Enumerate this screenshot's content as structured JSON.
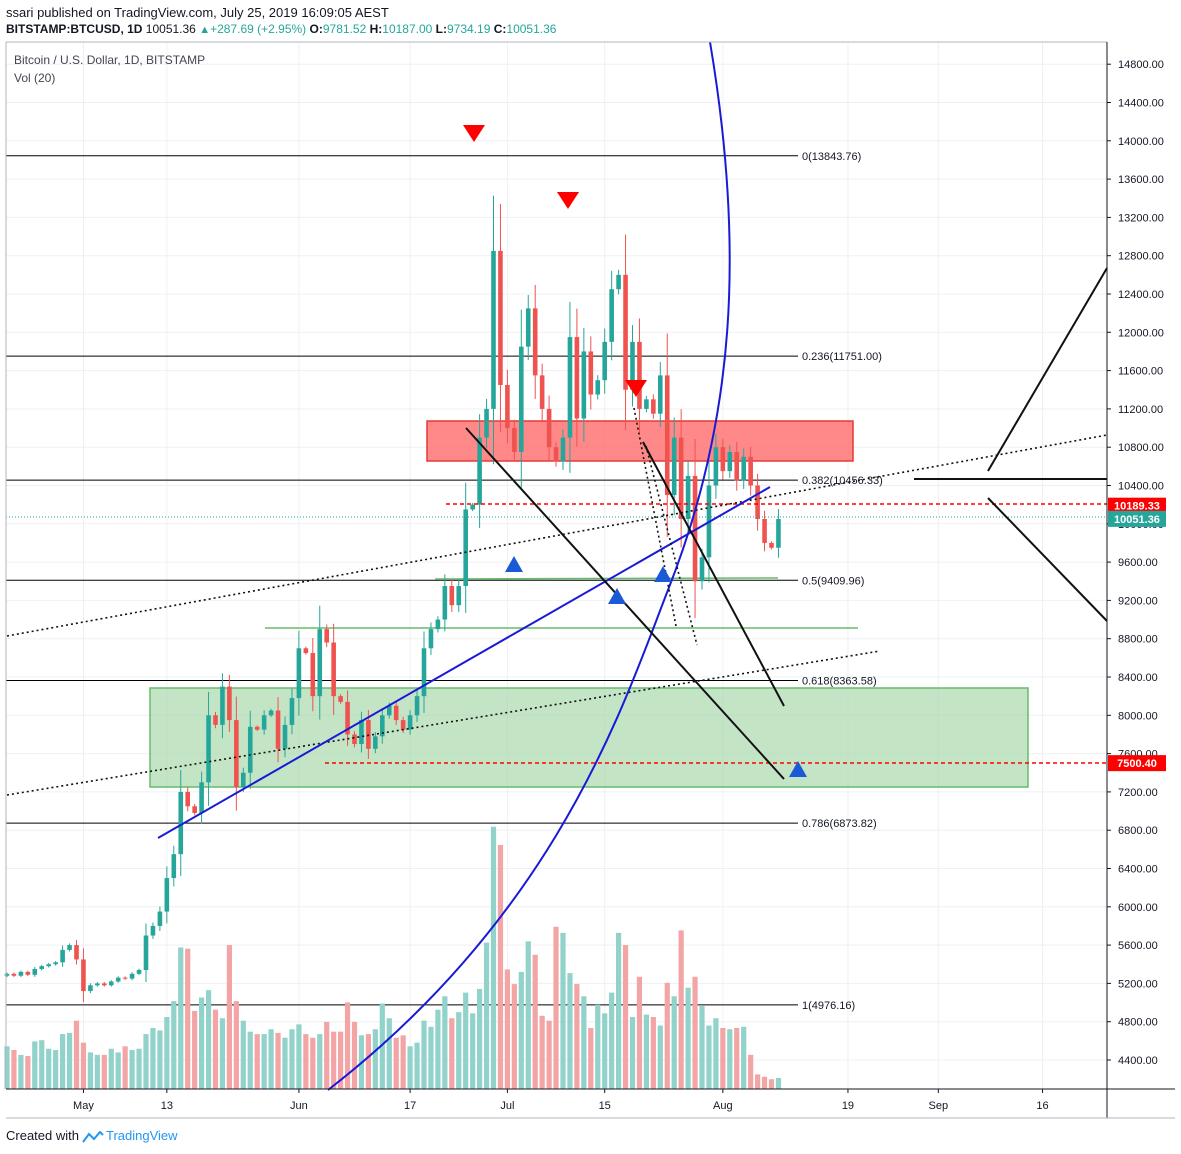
{
  "header": {
    "author": "ssari",
    "published_text": "published on TradingView.com, July 25, 2019 16:09:05 AEST",
    "symbol": "BITSTAMP:BTCUSD",
    "interval": "1D",
    "last": "10051.36",
    "change": "+287.69 (+2.95%)",
    "open_label": "O:",
    "open": "9781.52",
    "high_label": "H:",
    "high": "10187.00",
    "low_label": "L:",
    "low": "9734.19",
    "close_label": "C:",
    "close": "10051.36"
  },
  "legend": {
    "title": "Bitcoin / U.S. Dollar, 1D, BITSTAMP",
    "volume": "Vol (20)"
  },
  "footer": {
    "created_with": "Created with",
    "brand": "TradingView"
  },
  "colors": {
    "bull": "#26a69a",
    "bear": "#ef5350",
    "bull_vol": "#91d2ca",
    "bear_vol": "#f3a5a6",
    "resistance_zone": "#ff6b6b",
    "support_zone": "#a5d6a7",
    "trend_blue": "#1a1ad6",
    "pivot_down": "#ff0000",
    "pivot_up": "#1a5ad6"
  },
  "chart_data": {
    "type": "candlestick",
    "title": "Bitcoin / U.S. Dollar, 1D, BITSTAMP",
    "ylim": [
      4050,
      15100
    ],
    "start_date": "2019-04-20",
    "x_ticks": [
      {
        "label": "May",
        "day": 11
      },
      {
        "label": "13",
        "day": 23
      },
      {
        "label": "Jun",
        "day": 42
      },
      {
        "label": "17",
        "day": 58
      },
      {
        "label": "Jul",
        "day": 72
      },
      {
        "label": "15",
        "day": 86
      },
      {
        "label": "Aug",
        "day": 103
      },
      {
        "label": "19",
        "day": 121
      },
      {
        "label": "Sep",
        "day": 134
      },
      {
        "label": "16",
        "day": 149
      }
    ],
    "y_ticks": [
      "4400.00",
      "4800.00",
      "5200.00",
      "5600.00",
      "6000.00",
      "6400.00",
      "6800.00",
      "7200.00",
      "7600.00",
      "8000.00",
      "8400.00",
      "8800.00",
      "9200.00",
      "9600.00",
      "10000.00",
      "10400.00",
      "10800.00",
      "11200.00",
      "11600.00",
      "12000.00",
      "12400.00",
      "12800.00",
      "13200.00",
      "13600.00",
      "14000.00",
      "14400.00",
      "14800.00"
    ],
    "last_price_label": "10051.36",
    "price_tags": [
      "10189.33",
      "7500.40"
    ],
    "fibonacci": [
      {
        "label": "0(13843.76)",
        "price": 13843.76
      },
      {
        "label": "0.236(11751.00)",
        "price": 11751.0
      },
      {
        "label": "0.382(10456.33)",
        "price": 10456.33
      },
      {
        "label": "0.5(9409.96)",
        "price": 9409.96
      },
      {
        "label": "0.618(8363.58)",
        "price": 8363.58
      },
      {
        "label": "0.786(6873.82)",
        "price": 6873.82
      },
      {
        "label": "1(4976.16)",
        "price": 4976.16
      }
    ],
    "closes": [
      5300,
      5280,
      5320,
      5290,
      5350,
      5380,
      5400,
      5420,
      5550,
      5600,
      5450,
      5120,
      5180,
      5200,
      5180,
      5220,
      5260,
      5250,
      5300,
      5340,
      5700,
      5800,
      5950,
      6300,
      6550,
      7200,
      7050,
      6980,
      7300,
      8000,
      7900,
      8300,
      7950,
      7250,
      7400,
      7880,
      7850,
      8000,
      8050,
      7650,
      7900,
      8180,
      8700,
      8650,
      8200,
      8900,
      8760,
      8200,
      8140,
      7800,
      7700,
      7950,
      7650,
      7780,
      8000,
      8100,
      7950,
      7850,
      8000,
      8200,
      8700,
      8900,
      9000,
      9350,
      9150,
      9350,
      10150,
      10200,
      10900,
      11200,
      12850,
      11450,
      11000,
      10750,
      11850,
      12250,
      11550,
      11200,
      10800,
      10650,
      10900,
      11950,
      11100,
      11800,
      11350,
      11500,
      11900,
      12450,
      12600,
      11400,
      11900,
      11200,
      11300,
      11150,
      11550,
      10300,
      10900,
      10050,
      10500,
      9400,
      9650,
      10400,
      10800,
      10550,
      10750,
      10450,
      10700,
      10400,
      10050,
      9800,
      9750,
      10050
    ],
    "volumes": [
      350,
      320,
      280,
      270,
      390,
      400,
      330,
      320,
      450,
      460,
      560,
      380,
      300,
      280,
      280,
      330,
      300,
      350,
      320,
      330,
      450,
      500,
      480,
      590,
      720,
      1160,
      1150,
      640,
      750,
      810,
      650,
      580,
      1180,
      720,
      560,
      470,
      450,
      450,
      490,
      460,
      420,
      490,
      530,
      450,
      420,
      450,
      550,
      470,
      470,
      710,
      550,
      440,
      450,
      490,
      700,
      580,
      420,
      440,
      350,
      380,
      560,
      510,
      650,
      760,
      580,
      630,
      790,
      620,
      820,
      1200,
      2150,
      2000,
      980,
      860,
      960,
      1210,
      1100,
      600,
      560,
      1330,
      1280,
      950,
      860,
      760,
      500,
      690,
      620,
      790,
      1280,
      1180,
      590,
      920,
      610,
      590,
      520,
      870,
      760,
      1300,
      830,
      920,
      680,
      520,
      580,
      500,
      490,
      500,
      510,
      280,
      120,
      100,
      80,
      90
    ],
    "series": [
      {
        "name": "BTCUSD",
        "values": "closes"
      },
      {
        "name": "Vol (20)",
        "values": "volumes"
      }
    ],
    "xlabel": "",
    "ylabel": "",
    "grid": true
  }
}
